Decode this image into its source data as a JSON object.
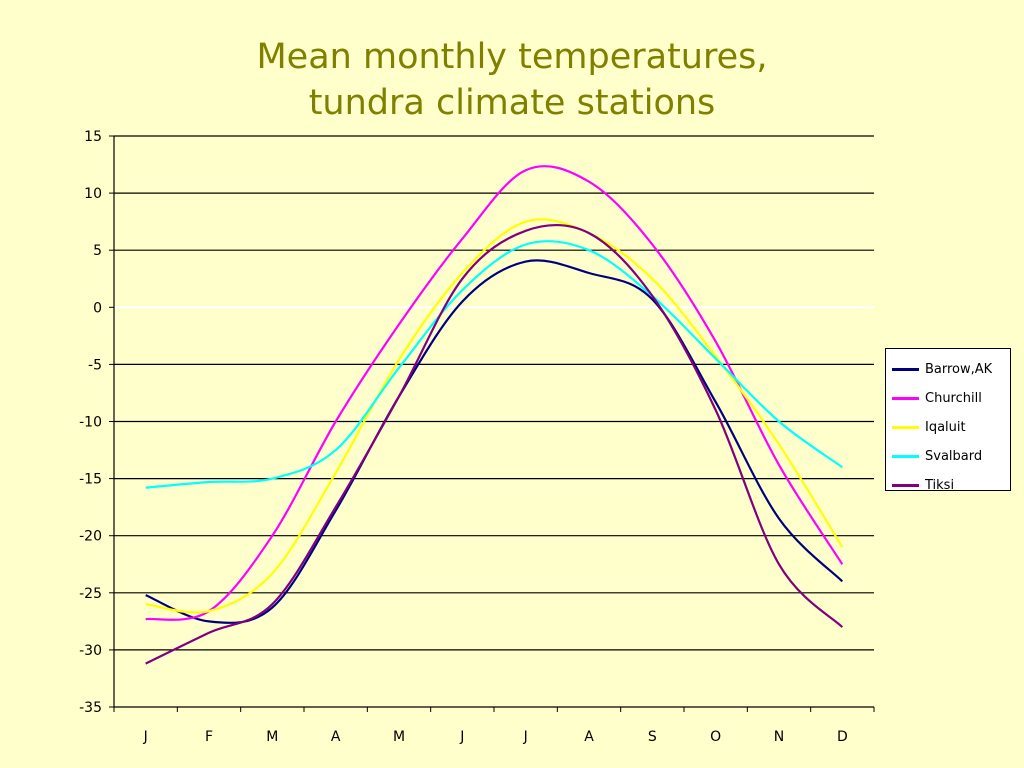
{
  "chart_data": {
    "type": "line",
    "title": [
      "Mean monthly temperatures,",
      "tundra climate stations"
    ],
    "xlabel": "",
    "ylabel": "",
    "categories": [
      "J",
      "F",
      "M",
      "A",
      "M",
      "J",
      "J",
      "A",
      "S",
      "O",
      "N",
      "D"
    ],
    "ylim": [
      -35,
      15
    ],
    "yticks": [
      15,
      10,
      5,
      0,
      -5,
      -10,
      -15,
      -20,
      -25,
      -30,
      -35
    ],
    "grid": true,
    "legend_position": "right",
    "series": [
      {
        "name": "Barrow,AK",
        "color": "#000080",
        "values": [
          -25.2,
          -27.5,
          -26.3,
          -17.8,
          -7.8,
          0.5,
          4.0,
          3.0,
          0.7,
          -8.3,
          -18.5,
          -24.0
        ]
      },
      {
        "name": "Churchill",
        "color": "#ff00ff",
        "values": [
          -27.3,
          -26.6,
          -20.0,
          -10.0,
          -1.5,
          6.0,
          12.0,
          11.0,
          5.5,
          -3.0,
          -13.8,
          -22.5
        ]
      },
      {
        "name": "Iqaluit",
        "color": "#ffff00",
        "values": [
          -26.0,
          -26.6,
          -23.3,
          -14.5,
          -4.6,
          3.0,
          7.5,
          6.5,
          2.5,
          -4.3,
          -12.0,
          -21.0
        ]
      },
      {
        "name": "Svalbard",
        "color": "#00ffff",
        "values": [
          -15.8,
          -15.3,
          -15.0,
          -12.5,
          -5.3,
          1.5,
          5.5,
          5.0,
          1.0,
          -4.5,
          -10.0,
          -14.0
        ]
      },
      {
        "name": "Tiksi",
        "color": "#800080",
        "values": [
          -31.2,
          -28.5,
          -26.0,
          -17.5,
          -7.8,
          2.5,
          6.7,
          6.5,
          1.0,
          -9.0,
          -22.5,
          -28.0
        ]
      }
    ]
  }
}
